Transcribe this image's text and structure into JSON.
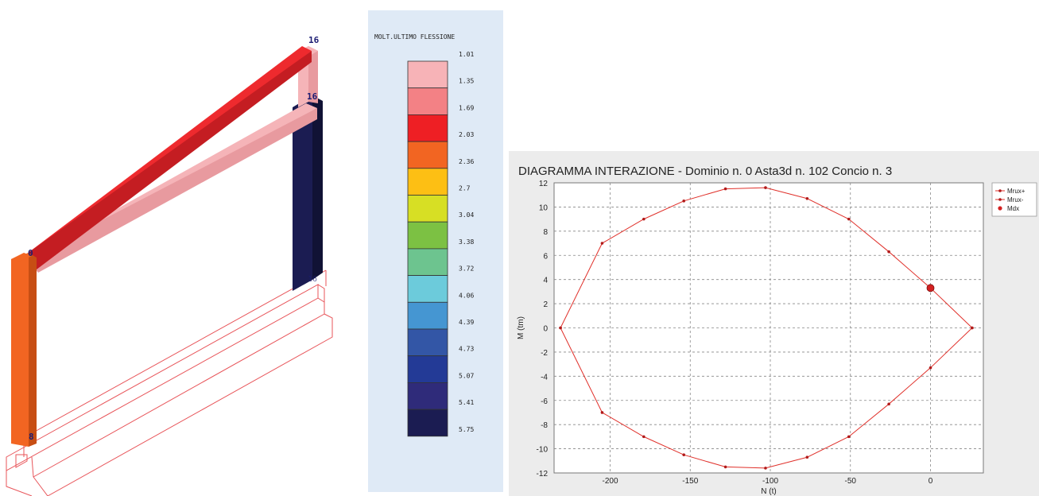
{
  "frame": {
    "node_labels": [
      "16",
      "16",
      "16",
      "0",
      "8"
    ],
    "colors": {
      "beam_top": "#ee2a2e",
      "beam_top_dark": "#c41d22",
      "beam_low": "#f5b4b8",
      "beam_low_dark": "#e89a9f",
      "column_right": "#1b1c52",
      "column_right_dark": "#111235",
      "column_left": "#f26522",
      "column_left_dark": "#c74e14",
      "foundation_outline": "#e8555a",
      "node_label": "#1b1c73"
    }
  },
  "legend": {
    "title": "MOLT.ULTIMO FLESSIONE",
    "levels": [
      "1.01",
      "1.35",
      "1.69",
      "2.03",
      "2.36",
      "2.7",
      "3.04",
      "3.38",
      "3.72",
      "4.06",
      "4.39",
      "4.73",
      "5.07",
      "5.41",
      "5.75"
    ],
    "colors": [
      "#f7b3b7",
      "#f38185",
      "#ee1f24",
      "#f26522",
      "#fdbf14",
      "#d7df24",
      "#7cc143",
      "#6dc48f",
      "#6ccbdb",
      "#4596d2",
      "#3356a6",
      "#233a96",
      "#2f2b7a",
      "#1b1c52"
    ]
  },
  "chart_data": {
    "type": "line",
    "title": "DIAGRAMMA INTERAZIONE - Dominio n.  0 Asta3d n. 102 Concio n.  3",
    "xlabel": "N (t)",
    "ylabel": "M (tm)",
    "xlim": [
      -235,
      33
    ],
    "ylim": [
      -12,
      12
    ],
    "x_ticks": [
      -200,
      -150,
      -100,
      -50,
      0
    ],
    "y_ticks": [
      -12,
      -10,
      -8,
      -6,
      -4,
      -2,
      0,
      2,
      4,
      6,
      8,
      10,
      12
    ],
    "grid": true,
    "legend_position": "top-right",
    "series": [
      {
        "name": "Mrux+",
        "color": "#b11a1a",
        "x": [
          -231,
          -205,
          -179,
          -154,
          -128,
          -103,
          -77,
          -51,
          -26,
          0,
          26
        ],
        "y": [
          0,
          7.0,
          9.0,
          10.5,
          11.5,
          11.6,
          10.7,
          9.0,
          6.3,
          3.3,
          0
        ]
      },
      {
        "name": "Mrux-",
        "color": "#b11a1a",
        "x": [
          -231,
          -205,
          -179,
          -154,
          -128,
          -103,
          -77,
          -51,
          -26,
          0,
          26
        ],
        "y": [
          0,
          -7.0,
          -9.0,
          -10.5,
          -11.5,
          -11.6,
          -10.7,
          -9.0,
          -6.3,
          -3.3,
          0
        ]
      },
      {
        "name": "Mdx",
        "color": "#d32020",
        "x": [
          0
        ],
        "y": [
          3.3
        ]
      }
    ]
  }
}
